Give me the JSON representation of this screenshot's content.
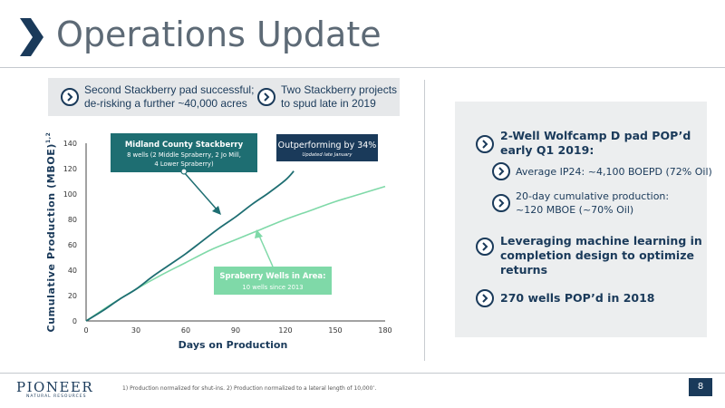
{
  "slide": {
    "title": "Operations Update",
    "page_number": "8"
  },
  "callouts": [
    {
      "line1": "Second Stackberry pad successful;",
      "line2": "de-risking a further ~40,000 acres"
    },
    {
      "line1": "Two Stackberry projects",
      "line2": "to spud late in 2019"
    }
  ],
  "right_panel": {
    "item1": {
      "line1": "2-Well Wolfcamp D pad POP’d",
      "line2": "early Q1 2019:"
    },
    "sub1": {
      "text": "Average IP24: ~4,100 BOEPD (72% Oil)"
    },
    "sub2": {
      "line1": "20-day cumulative production:",
      "line2": "~120 MBOE (~70% Oil)"
    },
    "item2": {
      "line1": "Leveraging machine learning in",
      "line2": "completion design to optimize",
      "line3": "returns"
    },
    "item3": {
      "text": "270 wells POP’d in 2018"
    }
  },
  "chart_data": {
    "type": "line",
    "xlabel": "Days on Production",
    "ylabel": "Cumulative Production (MBOE)",
    "ylabel_superscript": "1,2",
    "xlim": [
      0,
      180
    ],
    "ylim": [
      0,
      140
    ],
    "xticks": [
      0,
      30,
      60,
      90,
      120,
      150,
      180
    ],
    "yticks": [
      0,
      20,
      40,
      60,
      80,
      100,
      120,
      140
    ],
    "grid": false,
    "series": [
      {
        "name": "Midland County Stackberry",
        "color": "#1e6e72",
        "x": [
          0,
          10,
          20,
          30,
          40,
          50,
          60,
          70,
          80,
          90,
          100,
          110,
          120,
          125
        ],
        "y": [
          0,
          8,
          17,
          25,
          35,
          44,
          53,
          63,
          73,
          82,
          92,
          101,
          111,
          118
        ]
      },
      {
        "name": "Spraberry Wells in Area",
        "color": "#7fd9a8",
        "x": [
          0,
          15,
          30,
          45,
          60,
          75,
          90,
          105,
          120,
          135,
          150,
          165,
          180
        ],
        "y": [
          0,
          13,
          25,
          36,
          46,
          56,
          64,
          72,
          80,
          87,
          94,
          100,
          106
        ]
      }
    ],
    "annotations": {
      "stackberry_title": "Midland County Stackberry",
      "stackberry_line1": "8 wells (2 Middle Spraberry, 2 Jo Mill,",
      "stackberry_line2": "4 Lower Spraberry)",
      "spraberry_title": "Spraberry Wells in Area:",
      "spraberry_sub": "10 wells since 2013",
      "outperforming_title": "Outperforming by 34%",
      "outperforming_sub": "Updated late January"
    }
  },
  "footer": {
    "logo": "PIONEER",
    "logo_sub": "NATURAL RESOURCES",
    "footnote": "1) Production normalized for shut-ins.  2) Production normalized to a lateral length of 10,000’."
  },
  "colors": {
    "navy": "#1a3a5a",
    "teal": "#1e6e72",
    "mint": "#7fd9a8",
    "title_gray": "#5d6a76"
  }
}
